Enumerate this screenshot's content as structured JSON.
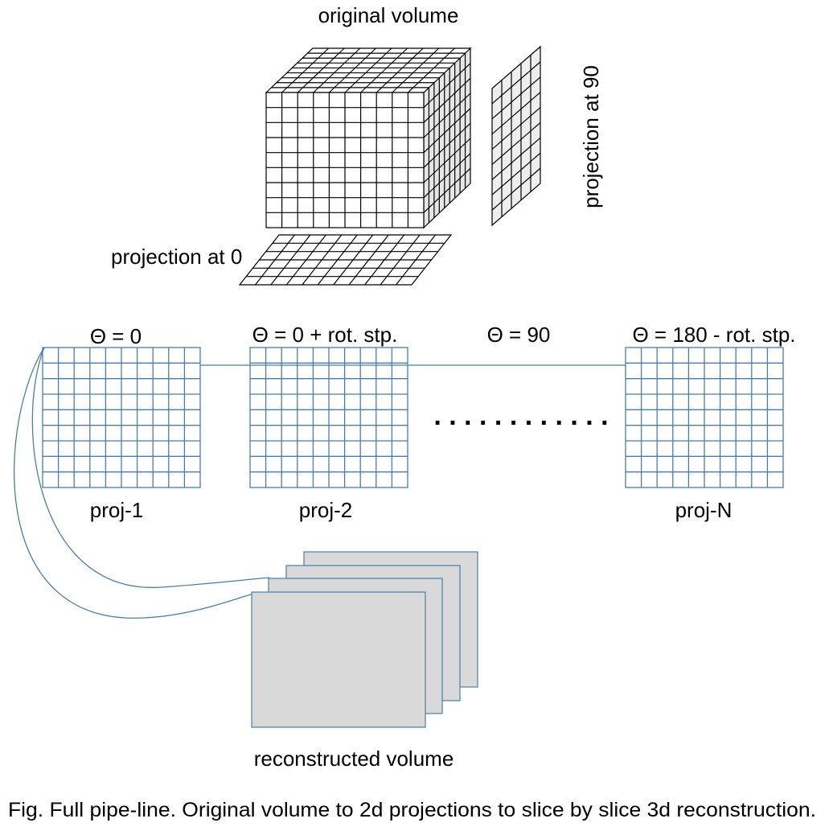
{
  "labels": {
    "original_volume": "original volume",
    "projection_90": "projection at 90",
    "projection_0": "projection at 0",
    "theta_0": "Θ = 0",
    "theta_step": "Θ = 0 + rot. stp.",
    "theta_90": "Θ = 90",
    "theta_180": "Θ = 180 - rot. stp.",
    "proj_1": "proj-1",
    "proj_2": "proj-2",
    "proj_n": "proj-N",
    "ellipsis": ". . . . . . . . . . . .",
    "reconstructed_volume": "reconstructed volume",
    "caption": "Fig. Full pipe-line. Original volume to 2d projections to slice by slice 3d reconstruction."
  },
  "colors": {
    "grid_blue": "#4a7ea8",
    "slice_fill": "#d9d9d9",
    "volume_side": "#e6e6e6",
    "projection_fill": "#eeeeee"
  }
}
